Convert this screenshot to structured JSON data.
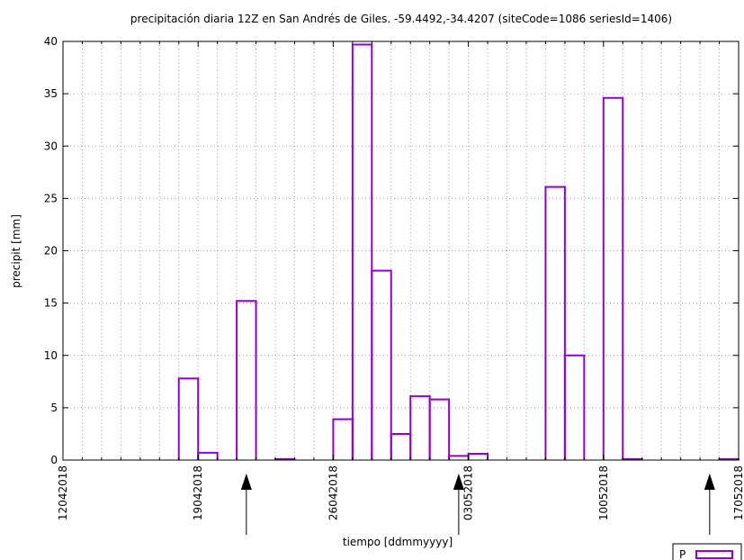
{
  "chart_data": {
    "type": "bar",
    "title": "precipitación diaria 12Z en San Andrés de Giles. -59.4492,-34.4207  (siteCode=1086 seriesId=1406)",
    "xlabel": "tiempo [ddmmyyyy]",
    "ylabel": "precipit [mm]",
    "ylim": [
      0,
      40
    ],
    "yticks": [
      0,
      5,
      10,
      15,
      20,
      25,
      30,
      35,
      40
    ],
    "xlim": [
      "2018-04-12",
      "2018-05-17"
    ],
    "xtick_labels": [
      {
        "date": "2018-04-12",
        "label": "12042018"
      },
      {
        "date": "2018-04-19",
        "label": "19042018"
      },
      {
        "date": "2018-04-26",
        "label": "26042018"
      },
      {
        "date": "2018-05-03",
        "label": "03052018"
      },
      {
        "date": "2018-05-10",
        "label": "10052018"
      },
      {
        "date": "2018-05-17",
        "label": "17052018"
      }
    ],
    "grid": true,
    "bar_color": "#9400d3",
    "legend": {
      "entries": [
        "P"
      ],
      "position": "bottom-right"
    },
    "arrows": [
      {
        "date": "2018-04-22"
      },
      {
        "date": "2018-05-03"
      },
      {
        "date": "2018-05-16"
      }
    ],
    "points": [
      {
        "date": "2018-04-19",
        "value": 7.8
      },
      {
        "date": "2018-04-20",
        "value": 0.7
      },
      {
        "date": "2018-04-22",
        "value": 15.2
      },
      {
        "date": "2018-04-24",
        "value": 0.1
      },
      {
        "date": "2018-04-27",
        "value": 3.9
      },
      {
        "date": "2018-04-28",
        "value": 39.7
      },
      {
        "date": "2018-04-29",
        "value": 18.1
      },
      {
        "date": "2018-04-30",
        "value": 2.5
      },
      {
        "date": "2018-05-01",
        "value": 6.1
      },
      {
        "date": "2018-05-02",
        "value": 5.8
      },
      {
        "date": "2018-05-03",
        "value": 0.4
      },
      {
        "date": "2018-05-04",
        "value": 0.6
      },
      {
        "date": "2018-05-08",
        "value": 26.1
      },
      {
        "date": "2018-05-09",
        "value": 10.0
      },
      {
        "date": "2018-05-11",
        "value": 34.6
      },
      {
        "date": "2018-05-12",
        "value": 0.1
      },
      {
        "date": "2018-05-17",
        "value": 0.1
      }
    ]
  }
}
